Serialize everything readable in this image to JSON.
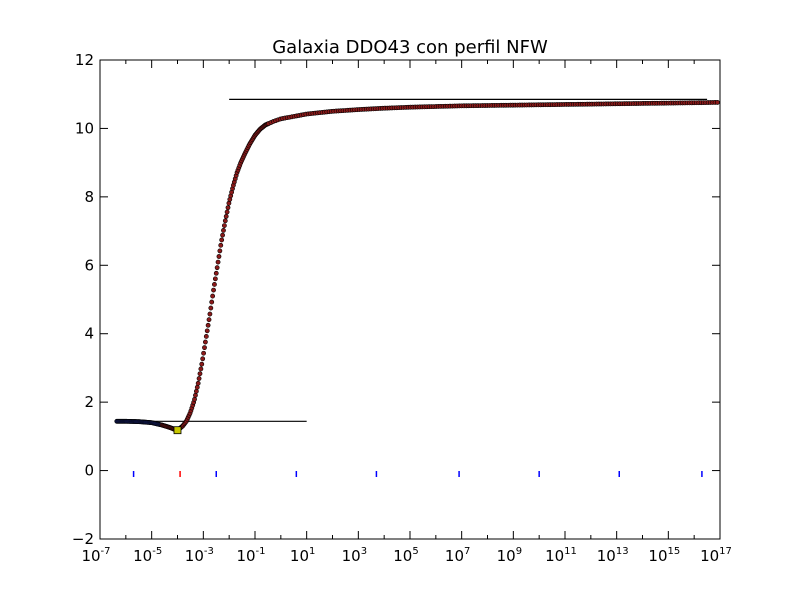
{
  "chart_data": {
    "type": "scatter",
    "title": "Galaxia DDO43 con perfil NFW",
    "xlabel": "",
    "ylabel": "",
    "xscale": "log",
    "xlim_log10": [
      -7,
      17
    ],
    "ylim": [
      -2,
      12
    ],
    "grid": false,
    "legend": "none",
    "x_ticks": [
      {
        "base": "10",
        "exp": "-7",
        "log10": -7
      },
      {
        "base": "10",
        "exp": "-5",
        "log10": -5
      },
      {
        "base": "10",
        "exp": "-3",
        "log10": -3
      },
      {
        "base": "10",
        "exp": "-1",
        "log10": -1
      },
      {
        "base": "10",
        "exp": "1",
        "log10": 1
      },
      {
        "base": "10",
        "exp": "3",
        "log10": 3
      },
      {
        "base": "10",
        "exp": "5",
        "log10": 5
      },
      {
        "base": "10",
        "exp": "7",
        "log10": 7
      },
      {
        "base": "10",
        "exp": "9",
        "log10": 9
      },
      {
        "base": "10",
        "exp": "11",
        "log10": 11
      },
      {
        "base": "10",
        "exp": "13",
        "log10": 13
      },
      {
        "base": "10",
        "exp": "15",
        "log10": 15
      },
      {
        "base": "10",
        "exp": "17",
        "log10": 17
      }
    ],
    "y_ticks": [
      {
        "label": "12",
        "value": 12
      },
      {
        "label": "10",
        "value": 10
      },
      {
        "label": "8",
        "value": 8
      },
      {
        "label": "6",
        "value": 6
      },
      {
        "label": "4",
        "value": 4
      },
      {
        "label": "2",
        "value": 2
      },
      {
        "label": "0",
        "value": 0
      },
      {
        "label": "−2",
        "value": -2
      }
    ],
    "curve": {
      "log10_x": [
        -6.35,
        -6.0,
        -5.5,
        -5.0,
        -4.6,
        -4.3,
        -4.1,
        -3.95,
        -3.8,
        -3.65,
        -3.5,
        -3.35,
        -3.2,
        -3.05,
        -2.9,
        -2.75,
        -2.6,
        -2.45,
        -2.3,
        -2.15,
        -2.0,
        -1.85,
        -1.7,
        -1.55,
        -1.4,
        -1.2,
        -1.0,
        -0.8,
        -0.6,
        -0.3,
        0.0,
        0.5,
        1.0,
        1.5,
        2.0,
        3.0,
        4.0,
        5.0,
        6.0,
        7.0,
        8.0,
        9.0,
        10.0,
        11.0,
        12.0,
        13.0,
        14.0,
        15.0,
        16.0,
        16.9
      ],
      "y": [
        1.44,
        1.44,
        1.43,
        1.4,
        1.33,
        1.26,
        1.2,
        1.21,
        1.3,
        1.45,
        1.7,
        2.05,
        2.55,
        3.15,
        3.85,
        4.55,
        5.3,
        6.0,
        6.7,
        7.3,
        7.85,
        8.3,
        8.7,
        9.0,
        9.25,
        9.55,
        9.8,
        9.98,
        10.1,
        10.2,
        10.28,
        10.35,
        10.42,
        10.46,
        10.5,
        10.55,
        10.59,
        10.62,
        10.64,
        10.66,
        10.67,
        10.68,
        10.69,
        10.7,
        10.71,
        10.72,
        10.73,
        10.74,
        10.75,
        10.76
      ]
    },
    "hlines": [
      {
        "y": 1.44,
        "log10_xmin": -6.35,
        "log10_xmax": 1.0
      },
      {
        "y": 10.85,
        "log10_xmin": -2.0,
        "log10_xmax": 16.5
      }
    ],
    "marker_highlight": {
      "log10_x": -4.0,
      "y": 1.18,
      "color": "#c8c800"
    },
    "bottom_markers": {
      "y": -0.1,
      "log10_x": [
        -5.7,
        -3.9,
        -2.5,
        0.6,
        3.7,
        6.9,
        10.0,
        13.1,
        16.3
      ],
      "colors": [
        "#0000ff",
        "#ff0000",
        "#0000ff",
        "#0000ff",
        "#0000ff",
        "#0000ff",
        "#0000ff",
        "#0000ff",
        "#0000ff"
      ]
    },
    "colors": {
      "point_fill": "#8b1a1a",
      "point_edge": "#000000",
      "line": "#000000",
      "low_points": "#1c2a8a"
    }
  }
}
